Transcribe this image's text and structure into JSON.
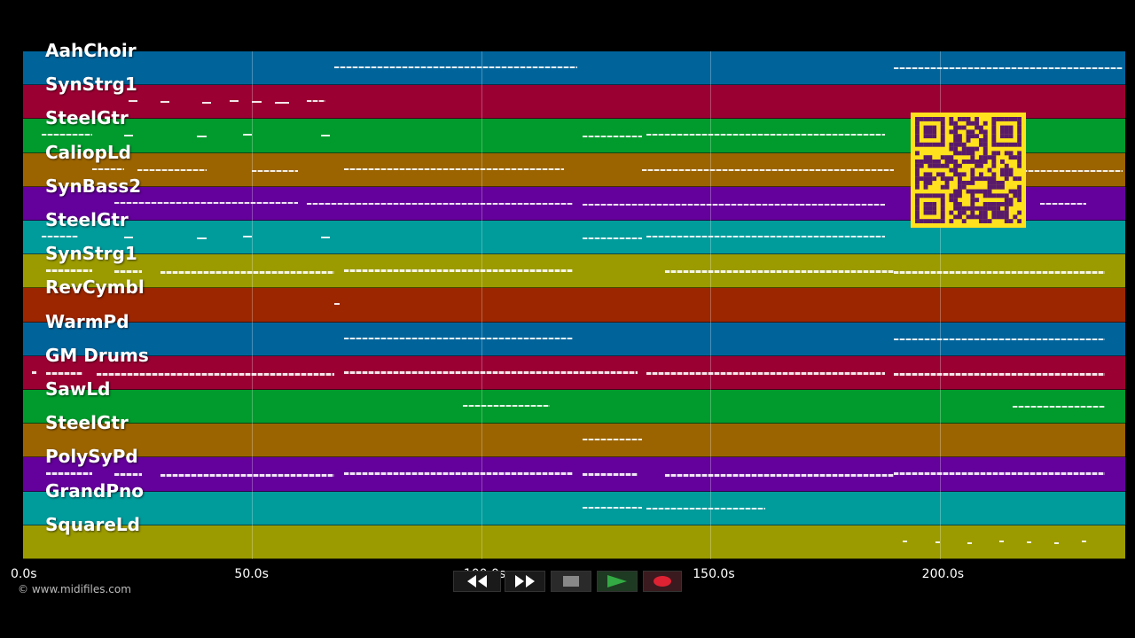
{
  "tracks": [
    {
      "name": "AahChoir",
      "color": "#00649b"
    },
    {
      "name": "SynStrg1",
      "color": "#9b0033"
    },
    {
      "name": "SteelGtr",
      "color": "#009b2c"
    },
    {
      "name": "CaliopLd",
      "color": "#9b6400"
    },
    {
      "name": "SynBass2",
      "color": "#64009b"
    },
    {
      "name": "SteelGtr",
      "color": "#009b9b"
    },
    {
      "name": "SynStrg1",
      "color": "#9b9b00"
    },
    {
      "name": "RevCymbl",
      "color": "#9b2600"
    },
    {
      "name": "WarmPd",
      "color": "#00649b"
    },
    {
      "name": "GM Drums",
      "color": "#9b0033"
    },
    {
      "name": "SawLd",
      "color": "#009b2c"
    },
    {
      "name": "SteelGtr",
      "color": "#9b6400"
    },
    {
      "name": "PolySyPd",
      "color": "#64009b"
    },
    {
      "name": "GrandPno",
      "color": "#009b9b"
    },
    {
      "name": "SquareLd",
      "color": "#9b9b00"
    }
  ],
  "timeline": {
    "ticks": [
      {
        "label": "0.0s",
        "t": 0
      },
      {
        "label": "50.0s",
        "t": 50
      },
      {
        "label": "100.0s",
        "t": 100
      },
      {
        "label": "150.0s",
        "t": 150
      },
      {
        "label": "200.0s",
        "t": 200
      }
    ]
  },
  "notes": [
    [
      [
        68,
        121
      ],
      [
        190,
        240
      ]
    ],
    [
      [
        23,
        25
      ],
      [
        30,
        32
      ],
      [
        39,
        41
      ],
      [
        45,
        47
      ],
      [
        50,
        52
      ],
      [
        55,
        58
      ],
      [
        62,
        66
      ]
    ],
    [
      [
        4,
        15
      ],
      [
        22,
        24
      ],
      [
        38,
        40
      ],
      [
        48,
        50
      ],
      [
        65,
        67
      ],
      [
        122,
        135
      ],
      [
        136,
        188
      ]
    ],
    [
      [
        15,
        22
      ],
      [
        25,
        40
      ],
      [
        50,
        60
      ],
      [
        70,
        118
      ],
      [
        135,
        190
      ],
      [
        195,
        240
      ]
    ],
    [
      [
        20,
        60
      ],
      [
        62,
        120
      ],
      [
        122,
        188
      ],
      [
        200,
        214
      ],
      [
        222,
        232
      ]
    ],
    [
      [
        4,
        12
      ],
      [
        22,
        24
      ],
      [
        38,
        40
      ],
      [
        48,
        50
      ],
      [
        65,
        67
      ],
      [
        122,
        135
      ],
      [
        136,
        188
      ]
    ],
    [
      [
        5,
        15
      ],
      [
        20,
        26
      ],
      [
        30,
        68
      ],
      [
        70,
        120
      ],
      [
        140,
        190
      ],
      [
        190,
        236
      ]
    ],
    [
      [
        68,
        69
      ]
    ],
    [
      [
        70,
        120
      ],
      [
        190,
        236
      ]
    ],
    [
      [
        2,
        3
      ],
      [
        5,
        13
      ],
      [
        16,
        68
      ],
      [
        70,
        134
      ],
      [
        136,
        188
      ],
      [
        190,
        236
      ]
    ],
    [
      [
        96,
        115
      ],
      [
        216,
        236
      ]
    ],
    [
      [
        122,
        135
      ]
    ],
    [
      [
        5,
        15
      ],
      [
        20,
        26
      ],
      [
        30,
        68
      ],
      [
        70,
        120
      ],
      [
        122,
        134
      ],
      [
        140,
        190
      ],
      [
        190,
        236
      ]
    ],
    [
      [
        122,
        135
      ],
      [
        136,
        162
      ]
    ],
    [
      [
        192,
        193
      ],
      [
        199,
        200
      ],
      [
        206,
        207
      ],
      [
        213,
        214
      ],
      [
        219,
        220
      ],
      [
        225,
        226
      ],
      [
        231,
        232
      ]
    ]
  ],
  "copyright": "© www.midifiles.com",
  "qr_code": "qr-code",
  "transport": {
    "rewind_icon": "rewind-icon",
    "fast_forward_icon": "fast-forward-icon",
    "stop_icon": "stop-icon",
    "play_icon": "play-icon",
    "record_icon": "record-icon",
    "play_color": "#33aa44",
    "record_color": "#dd2233"
  }
}
